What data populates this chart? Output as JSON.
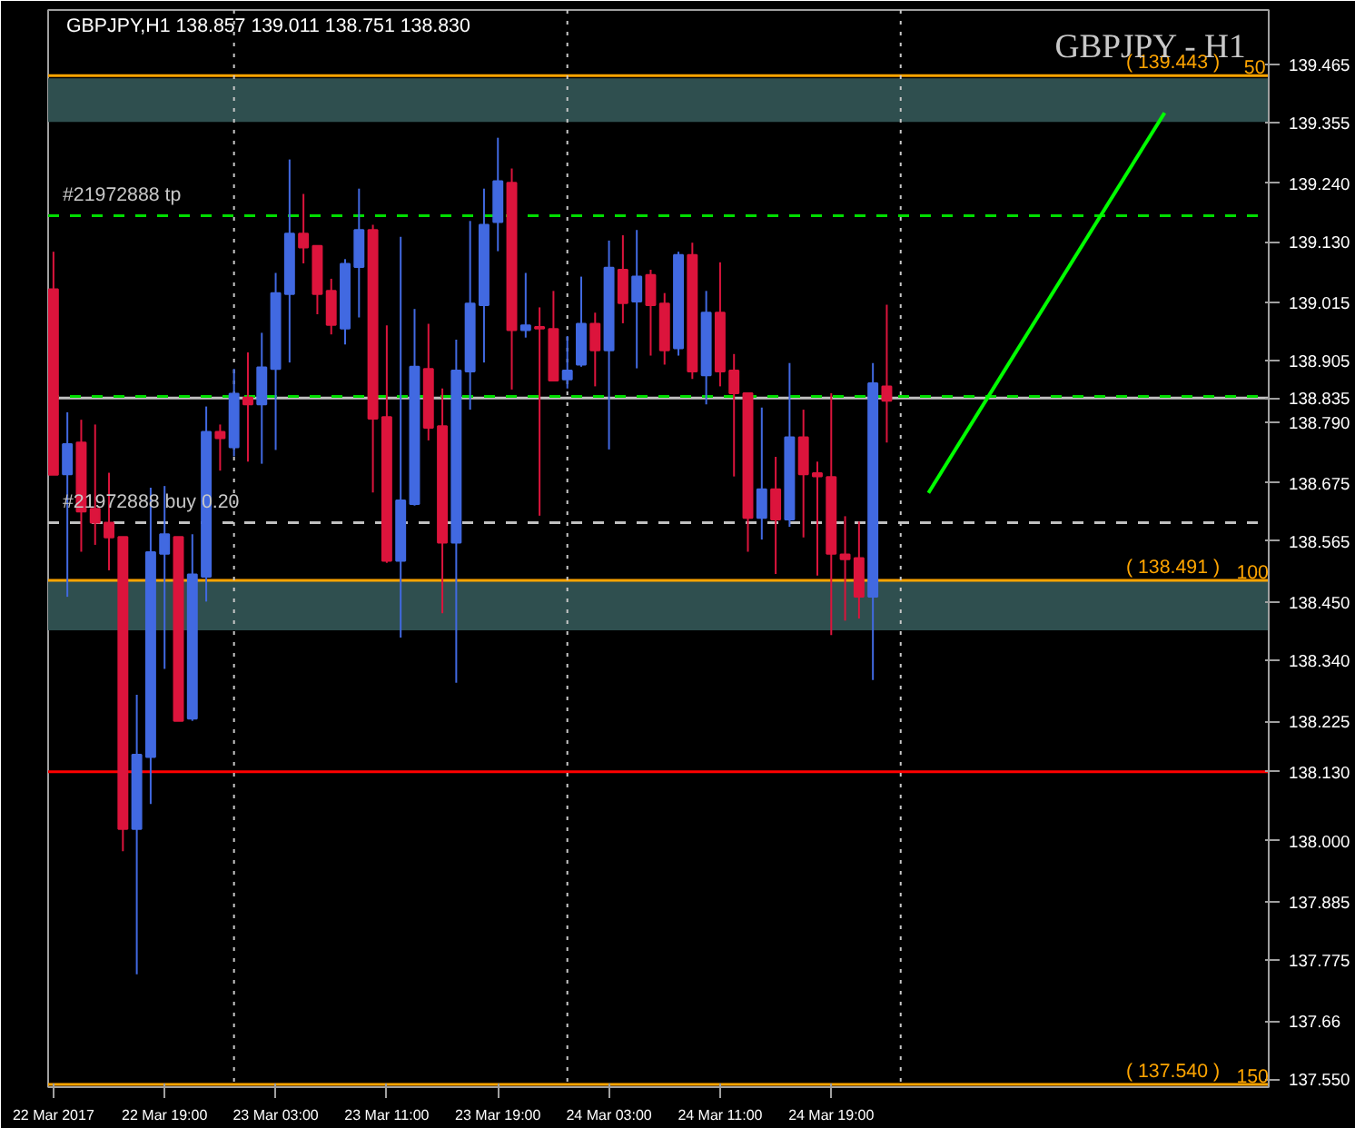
{
  "chart_data": {
    "type": "candlestick",
    "title": "GBPJPY,H1  138.857 139.011 138.751 138.830",
    "subtitle": "GBPJPY - H1",
    "x": [
      "2017-03-22T11:00",
      "2017-03-22T12:00",
      "2017-03-22T13:00",
      "2017-03-22T14:00",
      "2017-03-22T15:00",
      "2017-03-22T16:00",
      "2017-03-22T17:00",
      "2017-03-22T18:00",
      "2017-03-22T19:00",
      "2017-03-22T20:00",
      "2017-03-22T21:00",
      "2017-03-22T22:00",
      "2017-03-22T23:00",
      "2017-03-23T00:00",
      "2017-03-23T01:00",
      "2017-03-23T02:00",
      "2017-03-23T03:00",
      "2017-03-23T04:00",
      "2017-03-23T05:00",
      "2017-03-23T06:00",
      "2017-03-23T07:00",
      "2017-03-23T08:00",
      "2017-03-23T09:00",
      "2017-03-23T10:00",
      "2017-03-23T11:00",
      "2017-03-23T12:00",
      "2017-03-23T13:00",
      "2017-03-23T14:00",
      "2017-03-23T15:00",
      "2017-03-23T16:00",
      "2017-03-23T17:00",
      "2017-03-23T18:00",
      "2017-03-23T19:00",
      "2017-03-23T20:00",
      "2017-03-23T21:00",
      "2017-03-23T22:00",
      "2017-03-23T23:00",
      "2017-03-24T00:00",
      "2017-03-24T01:00",
      "2017-03-24T02:00",
      "2017-03-24T03:00",
      "2017-03-24T04:00",
      "2017-03-24T05:00",
      "2017-03-24T06:00",
      "2017-03-24T07:00",
      "2017-03-24T08:00",
      "2017-03-24T09:00",
      "2017-03-24T10:00",
      "2017-03-24T11:00",
      "2017-03-24T12:00",
      "2017-03-24T13:00",
      "2017-03-24T14:00",
      "2017-03-24T15:00",
      "2017-03-24T16:00",
      "2017-03-24T17:00",
      "2017-03-24T18:00",
      "2017-03-24T19:00",
      "2017-03-24T20:00",
      "2017-03-24T21:00",
      "2017-03-24T22:00",
      "2017-03-24T23:00"
    ],
    "ohlc": [
      [
        139.04,
        139.111,
        138.69,
        138.69
      ],
      [
        138.691,
        138.808,
        138.46,
        138.748
      ],
      [
        138.751,
        138.794,
        138.545,
        138.621
      ],
      [
        138.626,
        138.785,
        138.558,
        138.6
      ],
      [
        138.6,
        138.694,
        138.51,
        138.572
      ],
      [
        138.573,
        138.573,
        137.98,
        138.022
      ],
      [
        138.022,
        138.275,
        137.748,
        138.162
      ],
      [
        138.158,
        138.666,
        138.069,
        138.544
      ],
      [
        138.541,
        138.669,
        138.324,
        138.578
      ],
      [
        138.573,
        138.573,
        138.226,
        138.226
      ],
      [
        138.23,
        138.578,
        138.226,
        138.502
      ],
      [
        138.498,
        138.819,
        138.451,
        138.771
      ],
      [
        138.771,
        138.785,
        138.698,
        138.759
      ],
      [
        138.742,
        138.89,
        138.725,
        138.843
      ],
      [
        138.836,
        138.921,
        138.715,
        138.823
      ],
      [
        138.823,
        138.958,
        138.711,
        138.893
      ],
      [
        138.89,
        139.071,
        138.737,
        139.033
      ],
      [
        139.031,
        139.285,
        138.902,
        139.145
      ],
      [
        139.145,
        139.22,
        139.089,
        139.119
      ],
      [
        139.122,
        139.122,
        138.993,
        139.031
      ],
      [
        139.037,
        139.06,
        138.955,
        138.973
      ],
      [
        138.966,
        139.097,
        138.936,
        139.088
      ],
      [
        139.082,
        139.23,
        138.987,
        139.152
      ],
      [
        139.152,
        139.162,
        138.657,
        138.796
      ],
      [
        138.799,
        138.972,
        138.524,
        138.528
      ],
      [
        138.528,
        139.139,
        138.383,
        138.642
      ],
      [
        138.635,
        139.003,
        138.632,
        138.894
      ],
      [
        138.89,
        138.975,
        138.755,
        138.779
      ],
      [
        138.782,
        138.853,
        138.429,
        138.562
      ],
      [
        138.562,
        138.945,
        138.298,
        138.887
      ],
      [
        138.885,
        139.169,
        138.813,
        139.013
      ],
      [
        139.01,
        139.23,
        138.902,
        139.162
      ],
      [
        139.167,
        139.326,
        139.112,
        139.244
      ],
      [
        139.241,
        139.268,
        138.851,
        138.963
      ],
      [
        138.963,
        139.071,
        138.949,
        138.972
      ],
      [
        138.969,
        139.006,
        138.613,
        138.966
      ],
      [
        138.965,
        139.037,
        138.868,
        138.868
      ],
      [
        138.87,
        138.952,
        138.853,
        138.887
      ],
      [
        138.898,
        139.064,
        138.894,
        138.975
      ],
      [
        138.975,
        138.996,
        138.857,
        138.925
      ],
      [
        138.925,
        139.132,
        138.738,
        139.081
      ],
      [
        139.077,
        139.142,
        138.976,
        139.014
      ],
      [
        139.017,
        139.152,
        138.891,
        139.064
      ],
      [
        139.067,
        139.077,
        138.915,
        139.01
      ],
      [
        139.013,
        139.033,
        138.898,
        138.925
      ],
      [
        138.929,
        139.111,
        138.915,
        139.105
      ],
      [
        139.105,
        139.128,
        138.871,
        138.885
      ],
      [
        138.878,
        139.037,
        138.823,
        138.996
      ],
      [
        138.996,
        139.091,
        138.857,
        138.885
      ],
      [
        138.887,
        138.918,
        138.687,
        138.844
      ],
      [
        138.844,
        138.844,
        138.545,
        138.609
      ],
      [
        138.609,
        138.817,
        138.568,
        138.663
      ],
      [
        138.663,
        138.724,
        138.503,
        138.606
      ],
      [
        138.606,
        138.901,
        138.592,
        138.761
      ],
      [
        138.761,
        138.813,
        138.572,
        138.691
      ],
      [
        138.693,
        138.715,
        138.5,
        138.687
      ],
      [
        138.686,
        138.844,
        138.388,
        138.541
      ],
      [
        138.54,
        138.612,
        138.415,
        138.531
      ],
      [
        138.533,
        138.602,
        138.419,
        138.46
      ],
      [
        138.46,
        138.901,
        138.303,
        138.863
      ],
      [
        138.857,
        139.011,
        138.751,
        138.83
      ]
    ],
    "colors": [
      "#dc143c",
      "#4169e1",
      "#dc143c",
      "#dc143c",
      "#dc143c",
      "#dc143c",
      "#4169e1",
      "#4169e1",
      "#4169e1",
      "#dc143c",
      "#4169e1",
      "#4169e1",
      "#dc143c",
      "#4169e1",
      "#dc143c",
      "#4169e1",
      "#4169e1",
      "#4169e1",
      "#dc143c",
      "#dc143c",
      "#dc143c",
      "#4169e1",
      "#4169e1",
      "#dc143c",
      "#dc143c",
      "#4169e1",
      "#4169e1",
      "#dc143c",
      "#dc143c",
      "#4169e1",
      "#4169e1",
      "#4169e1",
      "#4169e1",
      "#dc143c",
      "#4169e1",
      "#dc143c",
      "#dc143c",
      "#4169e1",
      "#4169e1",
      "#dc143c",
      "#4169e1",
      "#dc143c",
      "#4169e1",
      "#dc143c",
      "#dc143c",
      "#4169e1",
      "#dc143c",
      "#4169e1",
      "#dc143c",
      "#dc143c",
      "#dc143c",
      "#4169e1",
      "#dc143c",
      "#4169e1",
      "#dc143c",
      "#dc143c",
      "#dc143c",
      "#dc143c",
      "#dc143c",
      "#4169e1",
      "#dc143c"
    ],
    "series": [
      {
        "type": "line",
        "color": "#00ff00",
        "x": [
          "2017-03-25T02:00",
          "2017-03-25T19:00"
        ],
        "values": [
          138.656,
          139.373
        ]
      }
    ],
    "xlim": [
      "2017-03-22T10:37",
      "2017-03-26T02:30"
    ],
    "xticks": [
      {
        "value": "2017-03-22T11:00",
        "label": "22 Mar 2017"
      },
      {
        "value": "2017-03-22T19:00",
        "label": "22 Mar 19:00"
      },
      {
        "value": "2017-03-23T03:00",
        "label": "23 Mar 03:00"
      },
      {
        "value": "2017-03-23T11:00",
        "label": "23 Mar 11:00"
      },
      {
        "value": "2017-03-23T19:00",
        "label": "23 Mar 19:00"
      },
      {
        "value": "2017-03-24T03:00",
        "label": "24 Mar 03:00"
      },
      {
        "value": "2017-03-24T11:00",
        "label": "24 Mar 11:00"
      },
      {
        "value": "2017-03-24T19:00",
        "label": "24 Mar 19:00"
      }
    ],
    "ylim": [
      137.535,
      139.567
    ],
    "yticks": [
      139.465,
      139.355,
      {
        "value": 139.24,
        "label": "139.240"
      },
      {
        "value": 139.13,
        "label": "139.130"
      },
      139.015,
      138.905,
      {
        "value": 138.79,
        "label": "138.790"
      },
      138.675,
      138.565,
      {
        "value": 138.45,
        "label": "138.450"
      },
      {
        "value": 138.34,
        "label": "138.340"
      },
      138.225,
      {
        "value": 138.0,
        "label": "138.000"
      },
      137.885,
      137.775,
      137.66,
      {
        "value": 137.55,
        "label": "137.550"
      },
      138.835,
      {
        "value": 138.13,
        "label": "138.130"
      }
    ],
    "ref_lines": [
      {
        "axis": "y",
        "value": 139.443,
        "color": "#ffa500",
        "line_style": "solid"
      },
      {
        "axis": "y",
        "value": 138.491,
        "color": "#ffa500",
        "line_style": "solid"
      },
      {
        "axis": "y",
        "value": 137.54,
        "color": "#ffa500",
        "line_style": "solid"
      },
      {
        "axis": "y",
        "value": 138.13,
        "color": "#ff0000",
        "line_style": "solid"
      },
      {
        "axis": "y",
        "value": 138.835,
        "color": "#c0c0c0",
        "line_style": "solid"
      },
      {
        "axis": "y",
        "value": 138.838,
        "color": "#00dd00",
        "line_style": "dashed"
      },
      {
        "axis": "y",
        "value": 139.179,
        "color": "#00dd00",
        "line_style": "dashed",
        "label": "#21972888 tp"
      },
      {
        "axis": "y",
        "value": 138.6,
        "color": "#c0c0c0",
        "line_style": "dashed",
        "label": "#21972888 buy 0.20"
      },
      {
        "axis": "x",
        "value": "2017-03-23T00:00",
        "color": "#c8c8c8",
        "line_style": "dotted"
      },
      {
        "axis": "x",
        "value": "2017-03-24T00:00",
        "color": "#c8c8c8",
        "line_style": "dotted"
      },
      {
        "axis": "x",
        "value": "2017-03-25T00:00",
        "color": "#c8c8c8",
        "line_style": "dotted"
      }
    ],
    "bands": [
      {
        "axis": "y",
        "from": 139.356,
        "to": 139.438,
        "color": "#2f4f4f"
      },
      {
        "axis": "y",
        "from": 138.397,
        "to": 138.491,
        "color": "#2f4f4f"
      }
    ],
    "annotations": [
      {
        "text": "( 139.443 )",
        "x": "2017-03-25T19:36",
        "y": 139.443
      },
      {
        "text": "50",
        "x": "2017-03-26T01:30",
        "y": 139.443
      },
      {
        "text": "( 138.491 )",
        "x": "2017-03-25T19:36",
        "y": 138.491
      },
      {
        "text": "100",
        "x": "2017-03-26T01:20",
        "y": 138.491
      },
      {
        "text": "( 137.540 )",
        "x": "2017-03-25T19:36",
        "y": 137.54
      },
      {
        "text": "150",
        "x": "2017-03-26T01:20",
        "y": 137.54
      }
    ],
    "grid": false
  }
}
